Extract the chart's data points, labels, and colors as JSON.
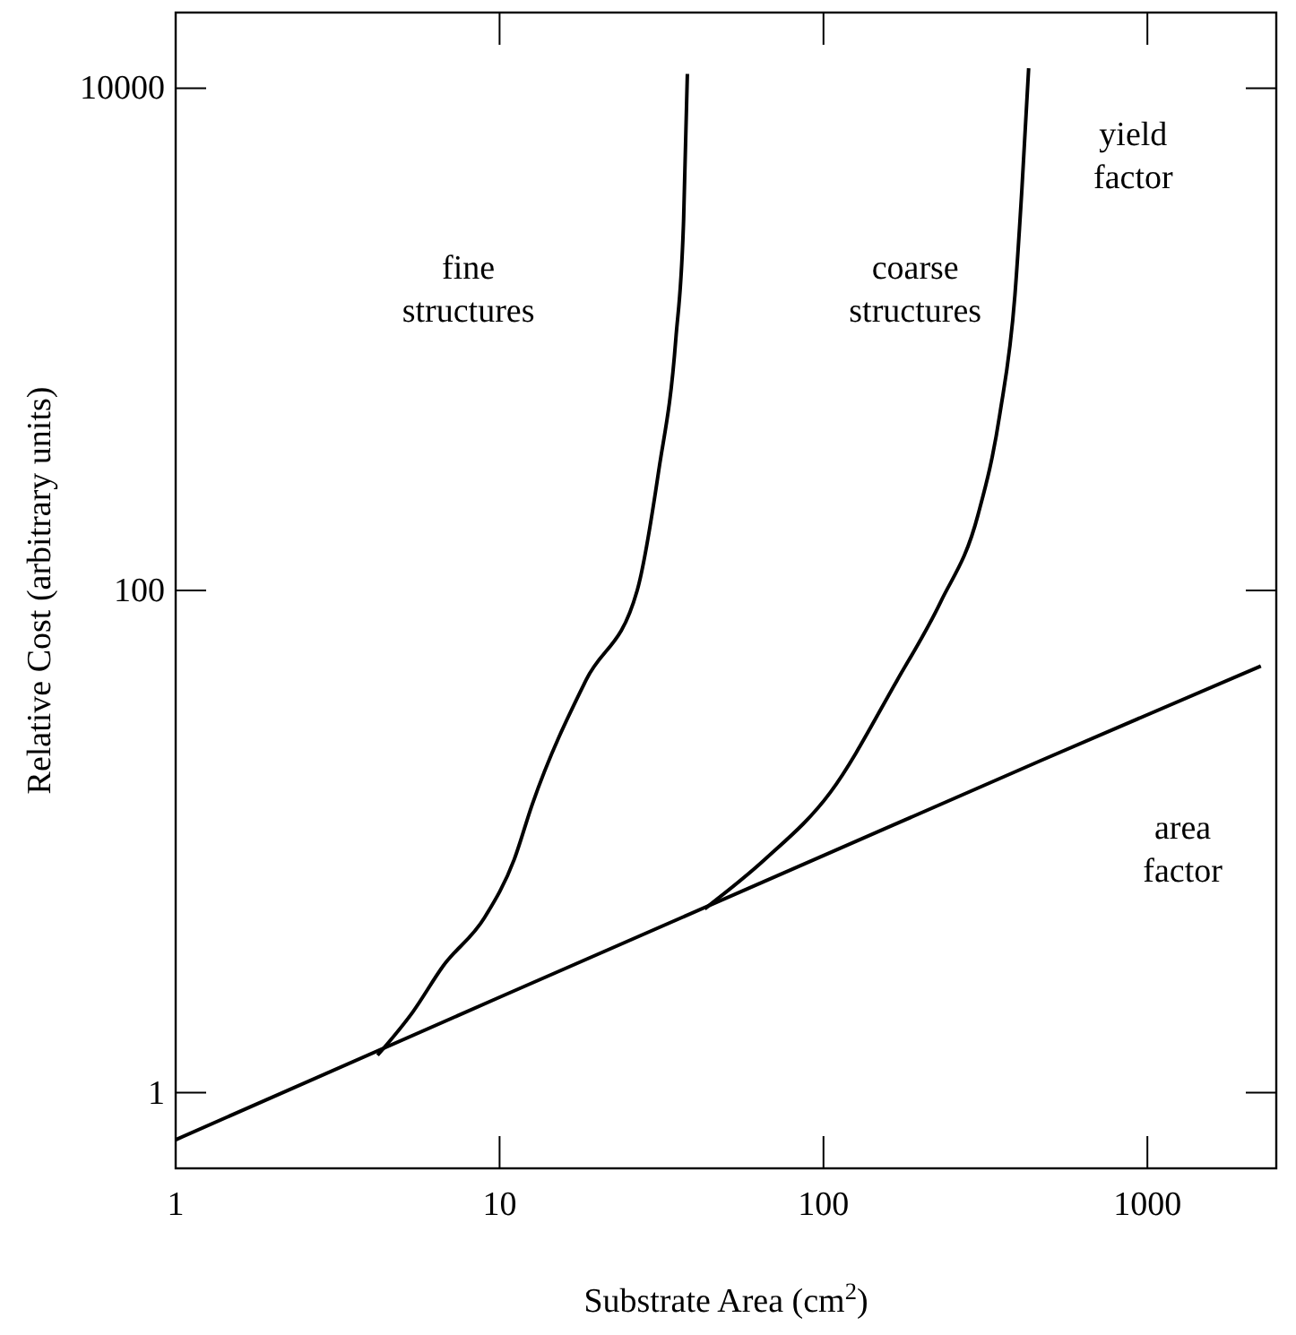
{
  "chart_data": {
    "type": "line",
    "xlabel": "Substrate Area (cm$^{2}$)",
    "ylabel": "Relative Cost (arbitrary units)",
    "log": "xy",
    "xlim": [
      1,
      2500
    ],
    "ylim": [
      0.5,
      20000
    ],
    "xticks": [
      1,
      10,
      100,
      1000
    ],
    "yticks": [
      1,
      100,
      10000
    ],
    "grid": false,
    "marker": "none",
    "line_style": "solid",
    "series": [
      {
        "color": "#000000",
        "x": [
          1,
          10,
          100,
          468,
          2240
        ],
        "values": [
          0.65,
          2.4,
          8.8,
          21,
          50
        ]
      },
      {
        "color": "#000000",
        "x": [
          4.2,
          5.4,
          6.7,
          9,
          11.1,
          12.6,
          18.5,
          26.6,
          31,
          35,
          37,
          38
        ],
        "values": [
          1.41,
          2.1,
          3.2,
          5,
          8.5,
          14,
          44,
          100,
          300,
          1000,
          3000,
          11400
        ]
      },
      {
        "color": "#000000",
        "x": [
          43,
          66,
          105,
          169,
          230,
          300,
          350,
          390,
          410,
          430
        ],
        "values": [
          5.4,
          8.5,
          15.7,
          44,
          90,
          200,
          500,
          1500,
          4000,
          12000
        ]
      }
    ],
    "annotations": [
      "fine structures",
      "coarse structures",
      "yield factor",
      "area factor"
    ]
  }
}
